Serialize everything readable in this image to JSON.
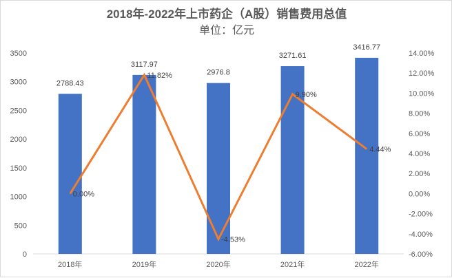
{
  "chart_data": {
    "type": "bar+line",
    "title": "2018年-2022年上市药企（A股）销售费用总值",
    "subtitle": "单位：亿元",
    "categories": [
      "2018年",
      "2019年",
      "2020年",
      "2021年",
      "2022年"
    ],
    "series": [
      {
        "type": "bar",
        "axis": "left",
        "color": "#4472c4",
        "values": [
          2788.43,
          3117.97,
          2976.8,
          3271.61,
          3416.77
        ],
        "labels": [
          "2788.43",
          "3117.97",
          "2976.8",
          "3271.61",
          "3416.77"
        ]
      },
      {
        "type": "line",
        "axis": "right",
        "color": "#ed7d31",
        "values": [
          0.0,
          11.82,
          -4.53,
          9.9,
          4.44
        ],
        "labels": [
          "0.00%",
          "11.82%",
          "-4.53%",
          "9.90%",
          "4.44%"
        ]
      }
    ],
    "y_left": {
      "min": 0,
      "max": 3500,
      "ticks": [
        "0",
        "500",
        "1000",
        "1500",
        "2000",
        "2500",
        "3000",
        "3500"
      ]
    },
    "y_right": {
      "min": -6,
      "max": 14,
      "ticks": [
        "-6.00%",
        "-4.00%",
        "-2.00%",
        "0.00%",
        "2.00%",
        "4.00%",
        "6.00%",
        "8.00%",
        "10.00%",
        "12.00%",
        "14.00%"
      ]
    },
    "grid": false,
    "legend": "none"
  }
}
